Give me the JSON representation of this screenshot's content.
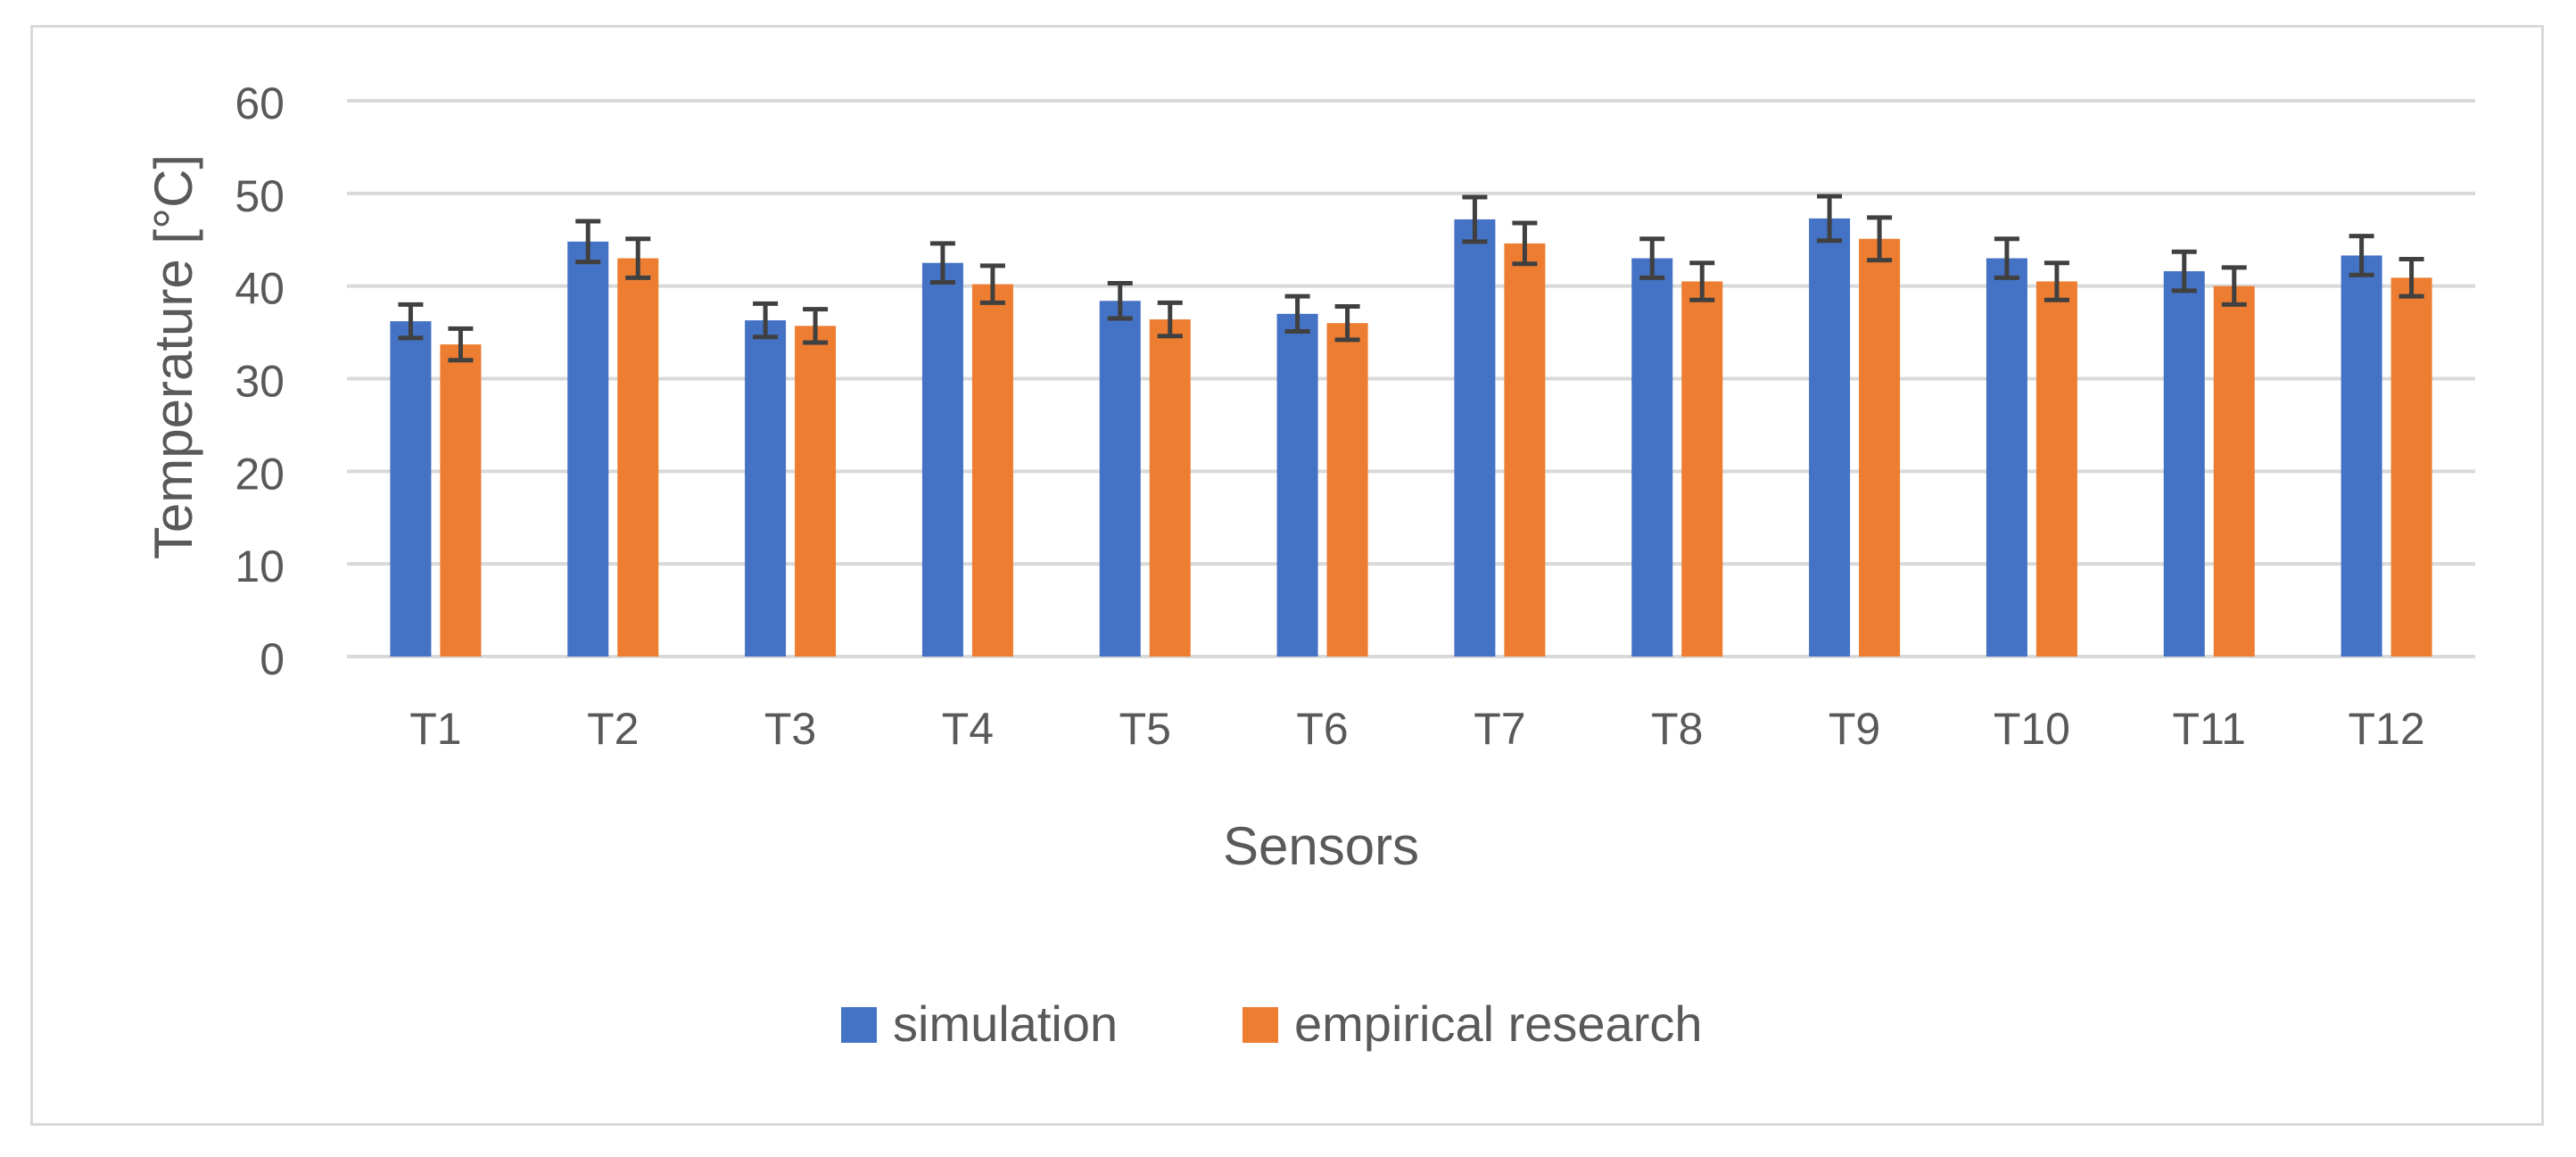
{
  "chart_data": {
    "type": "bar",
    "title": "",
    "xlabel": "Sensors",
    "ylabel": "Temperature [°C]",
    "ylim": [
      0,
      60
    ],
    "yticks": [
      0,
      10,
      20,
      30,
      40,
      50,
      60
    ],
    "grid": true,
    "legend_position": "bottom",
    "categories": [
      "T1",
      "T2",
      "T3",
      "T4",
      "T5",
      "T6",
      "T7",
      "T8",
      "T9",
      "T10",
      "T11",
      "T12"
    ],
    "series": [
      {
        "name": "simulation",
        "color": "#4472c4",
        "values": [
          36.2,
          44.8,
          36.3,
          42.5,
          38.4,
          37.0,
          47.2,
          43.0,
          47.3,
          43.0,
          41.6,
          43.3
        ],
        "error": [
          1.8,
          2.2,
          1.8,
          2.1,
          1.9,
          1.9,
          2.4,
          2.1,
          2.4,
          2.1,
          2.1,
          2.1
        ]
      },
      {
        "name": "empirical research",
        "color": "#ed7d31",
        "values": [
          33.7,
          43.0,
          35.7,
          40.2,
          36.4,
          36.0,
          44.6,
          40.5,
          45.1,
          40.5,
          40.0,
          40.9
        ],
        "error": [
          1.7,
          2.1,
          1.8,
          2.0,
          1.8,
          1.8,
          2.2,
          2.0,
          2.3,
          2.0,
          2.0,
          2.0
        ]
      }
    ],
    "error_bar_color": "#404040"
  }
}
